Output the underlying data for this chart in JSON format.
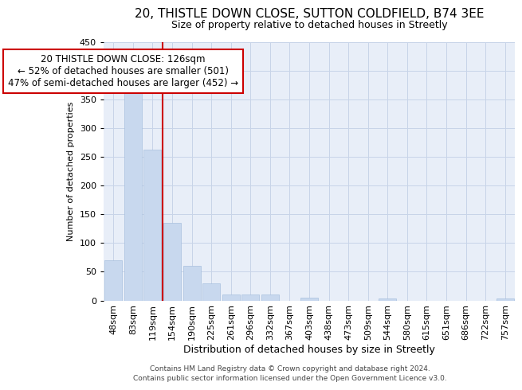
{
  "title1": "20, THISTLE DOWN CLOSE, SUTTON COLDFIELD, B74 3EE",
  "title2": "Size of property relative to detached houses in Streetly",
  "xlabel": "Distribution of detached houses by size in Streetly",
  "ylabel": "Number of detached properties",
  "bar_labels": [
    "48sqm",
    "83sqm",
    "119sqm",
    "154sqm",
    "190sqm",
    "225sqm",
    "261sqm",
    "296sqm",
    "332sqm",
    "367sqm",
    "403sqm",
    "438sqm",
    "473sqm",
    "509sqm",
    "544sqm",
    "580sqm",
    "615sqm",
    "651sqm",
    "686sqm",
    "722sqm",
    "757sqm"
  ],
  "bar_values": [
    70,
    380,
    262,
    135,
    60,
    30,
    10,
    10,
    10,
    0,
    5,
    0,
    0,
    0,
    4,
    0,
    0,
    0,
    0,
    0,
    4
  ],
  "bar_color": "#c8d8ee",
  "bar_edge_color": "#a8c0de",
  "grid_color": "#c8d4e8",
  "bg_color": "#e8eef8",
  "ref_line_color": "#cc0000",
  "annotation_line1": "20 THISTLE DOWN CLOSE: 126sqm",
  "annotation_line2": "← 52% of detached houses are smaller (501)",
  "annotation_line3": "47% of semi-detached houses are larger (452) →",
  "annotation_box_color": "#ffffff",
  "annotation_box_edge": "#cc0000",
  "ylim": [
    0,
    450
  ],
  "yticks": [
    0,
    50,
    100,
    150,
    200,
    250,
    300,
    350,
    400,
    450
  ],
  "footer1": "Contains HM Land Registry data © Crown copyright and database right 2024.",
  "footer2": "Contains public sector information licensed under the Open Government Licence v3.0.",
  "title1_fontsize": 11,
  "title2_fontsize": 9,
  "ylabel_fontsize": 8,
  "xlabel_fontsize": 9,
  "tick_fontsize": 8,
  "xtick_fontsize": 8,
  "footer_fontsize": 6.5,
  "annot_fontsize": 8.5
}
